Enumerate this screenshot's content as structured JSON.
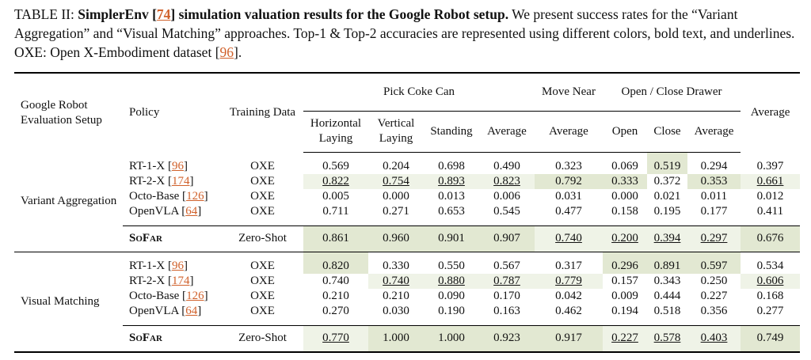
{
  "caption": [
    {
      "text": "TABLE II: ",
      "style": "plain"
    },
    {
      "text": "SimplerEnv [",
      "style": "bold"
    },
    {
      "text": "74",
      "style": "bold-ref"
    },
    {
      "text": "] simulation valuation results for the Google Robot setup.",
      "style": "bold"
    },
    {
      "text": " We present success rates for the “Variant Aggregation” and “Visual Matching” approaches. Top-1 & Top-2 accuracies are represented using different colors, bold text, and underlines. OXE: Open X-Embodiment dataset [",
      "style": "plain"
    },
    {
      "text": "96",
      "style": "ref"
    },
    {
      "text": "].",
      "style": "plain"
    }
  ],
  "table": {
    "header": {
      "setup": "Google Robot Evaluation Setup",
      "policy": "Policy",
      "training": "Training Data",
      "groups": [
        {
          "label": "Pick Coke Can",
          "columns": [
            "Horizontal Laying",
            "Vertical Laying",
            "Standing",
            "Average"
          ]
        },
        {
          "label": "Move Near",
          "columns": [
            "Average"
          ]
        },
        {
          "label": "Open / Close Drawer",
          "columns": [
            "Open",
            "Close",
            "Average"
          ]
        }
      ],
      "average": "Average"
    },
    "sections": [
      {
        "setup": "Variant Aggregation",
        "rows": [
          {
            "policy": [
              {
                "text": "RT-1-X [",
                "style": "plain"
              },
              {
                "text": "96",
                "style": "ref"
              },
              {
                "text": "]",
                "style": "plain"
              }
            ],
            "training": {
              "text": "OXE",
              "style": "plain"
            },
            "cells": [
              {
                "text": "0.569",
                "style": "plain"
              },
              {
                "text": "0.204",
                "style": "plain"
              },
              {
                "text": "0.698",
                "style": "plain"
              },
              {
                "text": "0.490",
                "style": "plain"
              },
              {
                "text": "0.323",
                "style": "plain"
              },
              {
                "text": "0.069",
                "style": "plain"
              },
              {
                "text": "0.519",
                "style": "top1"
              },
              {
                "text": "0.294",
                "style": "plain"
              },
              {
                "text": "0.397",
                "style": "plain"
              }
            ]
          },
          {
            "policy": [
              {
                "text": "RT-2-X [",
                "style": "plain"
              },
              {
                "text": "174",
                "style": "ref"
              },
              {
                "text": "]",
                "style": "plain"
              }
            ],
            "training": {
              "text": "OXE",
              "style": "plain"
            },
            "cells": [
              {
                "text": "0.822",
                "style": "top2"
              },
              {
                "text": "0.754",
                "style": "top2"
              },
              {
                "text": "0.893",
                "style": "top2"
              },
              {
                "text": "0.823",
                "style": "top2"
              },
              {
                "text": "0.792",
                "style": "top1"
              },
              {
                "text": "0.333",
                "style": "top1"
              },
              {
                "text": "0.372",
                "style": "plain"
              },
              {
                "text": "0.353",
                "style": "top1"
              },
              {
                "text": "0.661",
                "style": "top2"
              }
            ]
          },
          {
            "policy": [
              {
                "text": "Octo-Base [",
                "style": "plain"
              },
              {
                "text": "126",
                "style": "ref"
              },
              {
                "text": "]",
                "style": "plain"
              }
            ],
            "training": {
              "text": "OXE",
              "style": "plain"
            },
            "cells": [
              {
                "text": "0.005",
                "style": "plain"
              },
              {
                "text": "0.000",
                "style": "plain"
              },
              {
                "text": "0.013",
                "style": "plain"
              },
              {
                "text": "0.006",
                "style": "plain"
              },
              {
                "text": "0.031",
                "style": "plain"
              },
              {
                "text": "0.000",
                "style": "plain"
              },
              {
                "text": "0.021",
                "style": "plain"
              },
              {
                "text": "0.011",
                "style": "plain"
              },
              {
                "text": "0.012",
                "style": "plain"
              }
            ]
          },
          {
            "policy": [
              {
                "text": "OpenVLA [",
                "style": "plain"
              },
              {
                "text": "64",
                "style": "ref"
              },
              {
                "text": "]",
                "style": "plain"
              }
            ],
            "training": {
              "text": "OXE",
              "style": "plain"
            },
            "cells": [
              {
                "text": "0.711",
                "style": "plain"
              },
              {
                "text": "0.271",
                "style": "plain"
              },
              {
                "text": "0.653",
                "style": "plain"
              },
              {
                "text": "0.545",
                "style": "plain"
              },
              {
                "text": "0.477",
                "style": "plain"
              },
              {
                "text": "0.158",
                "style": "plain"
              },
              {
                "text": "0.195",
                "style": "plain"
              },
              {
                "text": "0.177",
                "style": "plain"
              },
              {
                "text": "0.411",
                "style": "plain"
              }
            ]
          },
          {
            "policy": [
              {
                "text": "SoFar",
                "style": "smallcaps"
              }
            ],
            "training": {
              "text": "Zero-Shot",
              "style": "bold"
            },
            "cells": [
              {
                "text": "0.861",
                "style": "top1"
              },
              {
                "text": "0.960",
                "style": "top1"
              },
              {
                "text": "0.901",
                "style": "top1"
              },
              {
                "text": "0.907",
                "style": "top1"
              },
              {
                "text": "0.740",
                "style": "top2"
              },
              {
                "text": "0.200",
                "style": "top2"
              },
              {
                "text": "0.394",
                "style": "top2"
              },
              {
                "text": "0.297",
                "style": "top2"
              },
              {
                "text": "0.676",
                "style": "top1"
              }
            ]
          }
        ]
      },
      {
        "setup": "Visual Matching",
        "rows": [
          {
            "policy": [
              {
                "text": "RT-1-X [",
                "style": "plain"
              },
              {
                "text": "96",
                "style": "ref"
              },
              {
                "text": "]",
                "style": "plain"
              }
            ],
            "training": {
              "text": "OXE",
              "style": "plain"
            },
            "cells": [
              {
                "text": "0.820",
                "style": "top1"
              },
              {
                "text": "0.330",
                "style": "plain"
              },
              {
                "text": "0.550",
                "style": "plain"
              },
              {
                "text": "0.567",
                "style": "plain"
              },
              {
                "text": "0.317",
                "style": "plain"
              },
              {
                "text": "0.296",
                "style": "top1"
              },
              {
                "text": "0.891",
                "style": "top1"
              },
              {
                "text": "0.597",
                "style": "top1"
              },
              {
                "text": "0.534",
                "style": "plain"
              }
            ]
          },
          {
            "policy": [
              {
                "text": "RT-2-X [",
                "style": "plain"
              },
              {
                "text": "174",
                "style": "ref"
              },
              {
                "text": "]",
                "style": "plain"
              }
            ],
            "training": {
              "text": "OXE",
              "style": "plain"
            },
            "cells": [
              {
                "text": "0.740",
                "style": "plain"
              },
              {
                "text": "0.740",
                "style": "top2"
              },
              {
                "text": "0.880",
                "style": "top2"
              },
              {
                "text": "0.787",
                "style": "top2"
              },
              {
                "text": "0.779",
                "style": "top2"
              },
              {
                "text": "0.157",
                "style": "plain"
              },
              {
                "text": "0.343",
                "style": "plain"
              },
              {
                "text": "0.250",
                "style": "plain"
              },
              {
                "text": "0.606",
                "style": "top2"
              }
            ]
          },
          {
            "policy": [
              {
                "text": "Octo-Base [",
                "style": "plain"
              },
              {
                "text": "126",
                "style": "ref"
              },
              {
                "text": "]",
                "style": "plain"
              }
            ],
            "training": {
              "text": "OXE",
              "style": "plain"
            },
            "cells": [
              {
                "text": "0.210",
                "style": "plain"
              },
              {
                "text": "0.210",
                "style": "plain"
              },
              {
                "text": "0.090",
                "style": "plain"
              },
              {
                "text": "0.170",
                "style": "plain"
              },
              {
                "text": "0.042",
                "style": "plain"
              },
              {
                "text": "0.009",
                "style": "plain"
              },
              {
                "text": "0.444",
                "style": "plain"
              },
              {
                "text": "0.227",
                "style": "plain"
              },
              {
                "text": "0.168",
                "style": "plain"
              }
            ]
          },
          {
            "policy": [
              {
                "text": "OpenVLA [",
                "style": "plain"
              },
              {
                "text": "64",
                "style": "ref"
              },
              {
                "text": "]",
                "style": "plain"
              }
            ],
            "training": {
              "text": "OXE",
              "style": "plain"
            },
            "cells": [
              {
                "text": "0.270",
                "style": "plain"
              },
              {
                "text": "0.030",
                "style": "plain"
              },
              {
                "text": "0.190",
                "style": "plain"
              },
              {
                "text": "0.163",
                "style": "plain"
              },
              {
                "text": "0.462",
                "style": "plain"
              },
              {
                "text": "0.194",
                "style": "plain"
              },
              {
                "text": "0.518",
                "style": "plain"
              },
              {
                "text": "0.356",
                "style": "plain"
              },
              {
                "text": "0.277",
                "style": "plain"
              }
            ]
          },
          {
            "policy": [
              {
                "text": "SoFar",
                "style": "smallcaps"
              }
            ],
            "training": {
              "text": "Zero-Shot",
              "style": "bold"
            },
            "cells": [
              {
                "text": "0.770",
                "style": "top2"
              },
              {
                "text": "1.000",
                "style": "top1"
              },
              {
                "text": "1.000",
                "style": "top1"
              },
              {
                "text": "0.923",
                "style": "top1"
              },
              {
                "text": "0.917",
                "style": "top1"
              },
              {
                "text": "0.227",
                "style": "top2"
              },
              {
                "text": "0.578",
                "style": "top2"
              },
              {
                "text": "0.403",
                "style": "top2"
              },
              {
                "text": "0.749",
                "style": "top1"
              }
            ]
          }
        ]
      }
    ]
  }
}
